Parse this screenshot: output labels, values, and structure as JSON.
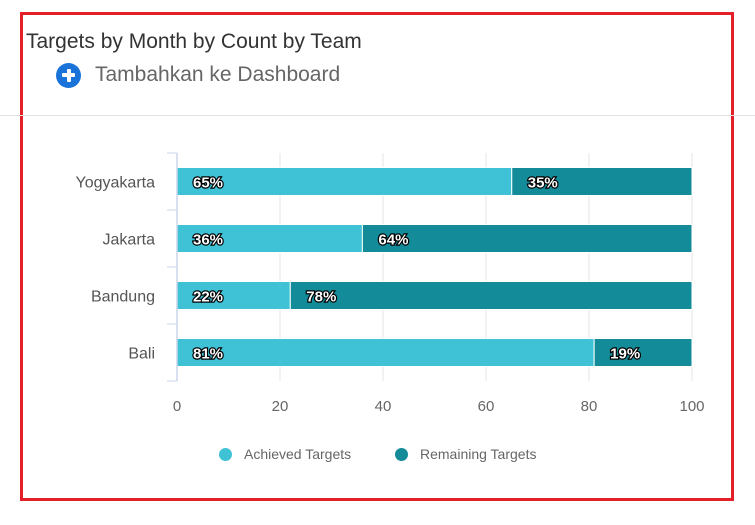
{
  "card": {
    "title": "Targets by Month by Count by Team",
    "add_label": "Tambahkan ke Dashboard"
  },
  "colors": {
    "achieved": "#3fc2d6",
    "remaining": "#138b98",
    "frame": "#e3202a",
    "add_icon": "#1a73d9"
  },
  "legend": {
    "achieved_label": "Achieved Targets",
    "remaining_label": "Remaining Targets"
  },
  "chart_data": {
    "type": "bar",
    "orientation": "horizontal",
    "stacked": true,
    "categories": [
      "Yogyakarta",
      "Jakarta",
      "Bandung",
      "Bali"
    ],
    "series": [
      {
        "name": "Achieved Targets",
        "values": [
          65,
          36,
          22,
          81
        ],
        "labels": [
          "65%",
          "36%",
          "22%",
          "81%"
        ]
      },
      {
        "name": "Remaining Targets",
        "values": [
          35,
          64,
          78,
          19
        ],
        "labels": [
          "35%",
          "64%",
          "78%",
          "19%"
        ]
      }
    ],
    "xlim": [
      0,
      100
    ],
    "xticks": [
      0,
      20,
      40,
      60,
      80,
      100
    ],
    "xtick_labels": [
      "0",
      "20",
      "40",
      "60",
      "80",
      "100"
    ],
    "grid": true,
    "legend_position": "bottom"
  }
}
